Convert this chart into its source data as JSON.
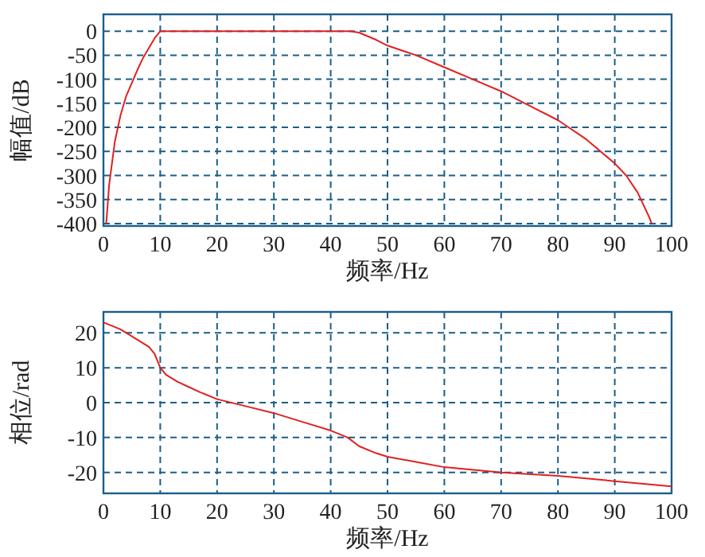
{
  "chart_data": [
    {
      "type": "line",
      "xlabel": "频率/Hz",
      "ylabel": "幅值/dB",
      "xlim": [
        0,
        100
      ],
      "ylim": [
        -405,
        35
      ],
      "xticks": [
        0,
        10,
        20,
        30,
        40,
        50,
        60,
        70,
        80,
        90,
        100
      ],
      "yticks": [
        -400,
        -350,
        -300,
        -250,
        -200,
        -150,
        -100,
        -50,
        0
      ],
      "grid": true,
      "series": [
        {
          "color": "#e02020",
          "x": [
            0.5,
            1,
            2,
            3,
            4,
            6,
            7,
            8,
            9,
            10,
            20,
            30,
            40,
            43.5,
            45,
            48,
            50,
            55,
            60,
            65,
            70,
            75,
            80,
            85,
            90,
            92,
            94,
            96,
            96.5
          ],
          "values": [
            -400,
            -320,
            -230,
            -175,
            -135,
            -80,
            -55,
            -35,
            -15,
            0,
            0,
            0,
            0,
            0,
            -3,
            -18,
            -30,
            -50,
            -75,
            -100,
            -125,
            -155,
            -185,
            -225,
            -275,
            -300,
            -335,
            -385,
            -400
          ]
        }
      ]
    },
    {
      "type": "line",
      "xlabel": "频率/Hz",
      "ylabel": "相位/rad",
      "xlim": [
        0,
        100
      ],
      "ylim": [
        -26,
        26
      ],
      "xticks": [
        0,
        10,
        20,
        30,
        40,
        50,
        60,
        70,
        80,
        90,
        100
      ],
      "yticks": [
        -20,
        -10,
        0,
        10,
        20
      ],
      "grid": true,
      "series": [
        {
          "color": "#e02020",
          "x": [
            0,
            3,
            5,
            8,
            9,
            10,
            11,
            13,
            15,
            17,
            20,
            25,
            30,
            35,
            40,
            43,
            45,
            48,
            50,
            55,
            60,
            70,
            80,
            90,
            100
          ],
          "values": [
            23,
            21,
            19,
            16,
            14,
            10,
            8,
            6,
            4.5,
            3,
            1,
            -1,
            -3,
            -5.5,
            -8,
            -10,
            -12.5,
            -14.5,
            -15.5,
            -17,
            -18.5,
            -20,
            -21,
            -22.5,
            -24
          ]
        }
      ]
    }
  ]
}
